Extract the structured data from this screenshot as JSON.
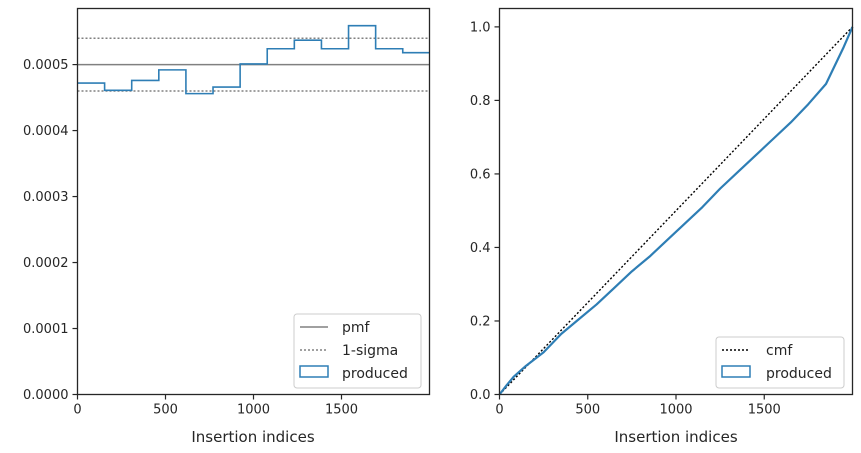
{
  "chart_data": [
    {
      "type": "step",
      "xlabel": "Insertion indices",
      "ylabel": "",
      "xlim": [
        0,
        2000
      ],
      "ylim": [
        0,
        0.000585
      ],
      "xticks": [
        0,
        500,
        1000,
        1500
      ],
      "xtick_labels": [
        "0",
        "500",
        "1000",
        "1500"
      ],
      "yticks": [
        0,
        0.0001,
        0.0002,
        0.0003,
        0.0004,
        0.0005
      ],
      "ytick_labels": [
        "0.0000",
        "0.0001",
        "0.0002",
        "0.0003",
        "0.0004",
        "0.0005"
      ],
      "legend_position": "lower-right",
      "legend": [
        "pmf",
        "1-sigma",
        "produced"
      ],
      "pmf": 0.0005,
      "sigma_band": [
        0.00046,
        0.00054
      ],
      "series": [
        {
          "name": "produced",
          "bin_edges": [
            0,
            154,
            308,
            462,
            616,
            770,
            924,
            1078,
            1232,
            1386,
            1540,
            1694,
            1848,
            2000
          ],
          "values": [
            0.000472,
            0.000461,
            0.000476,
            0.000492,
            0.000456,
            0.000466,
            0.000501,
            0.000524,
            0.000537,
            0.000524,
            0.000559,
            0.000524,
            0.000518
          ]
        }
      ],
      "colors": {
        "produced": "#2e7eb5",
        "pmf": "#808080",
        "sigma": "#808080"
      }
    },
    {
      "type": "line",
      "xlabel": "Insertion indices",
      "ylabel": "",
      "xlim": [
        0,
        2000
      ],
      "ylim": [
        0,
        1.05
      ],
      "xticks": [
        0,
        500,
        1000,
        1500
      ],
      "xtick_labels": [
        "0",
        "500",
        "1000",
        "1500"
      ],
      "yticks": [
        0,
        0.2,
        0.4,
        0.6,
        0.8,
        1.0
      ],
      "ytick_labels": [
        "0.0",
        "0.2",
        "0.4",
        "0.6",
        "0.8",
        "1.0"
      ],
      "legend_position": "lower-right",
      "legend": [
        "cmf",
        "produced"
      ],
      "series": [
        {
          "name": "cmf",
          "x": [
            0,
            2000
          ],
          "y": [
            0,
            1.0
          ]
        },
        {
          "name": "produced",
          "x": [
            0,
            40,
            80,
            150,
            250,
            350,
            450,
            550,
            650,
            750,
            850,
            950,
            1050,
            1150,
            1250,
            1350,
            1450,
            1550,
            1650,
            1750,
            1850,
            1950,
            2000
          ],
          "y": [
            0,
            0.025,
            0.048,
            0.078,
            0.115,
            0.165,
            0.205,
            0.245,
            0.29,
            0.335,
            0.375,
            0.42,
            0.465,
            0.51,
            0.56,
            0.605,
            0.65,
            0.695,
            0.74,
            0.79,
            0.845,
            0.945,
            1.0
          ]
        }
      ],
      "colors": {
        "produced": "#2e7eb5",
        "cmf": "#000000"
      }
    }
  ]
}
